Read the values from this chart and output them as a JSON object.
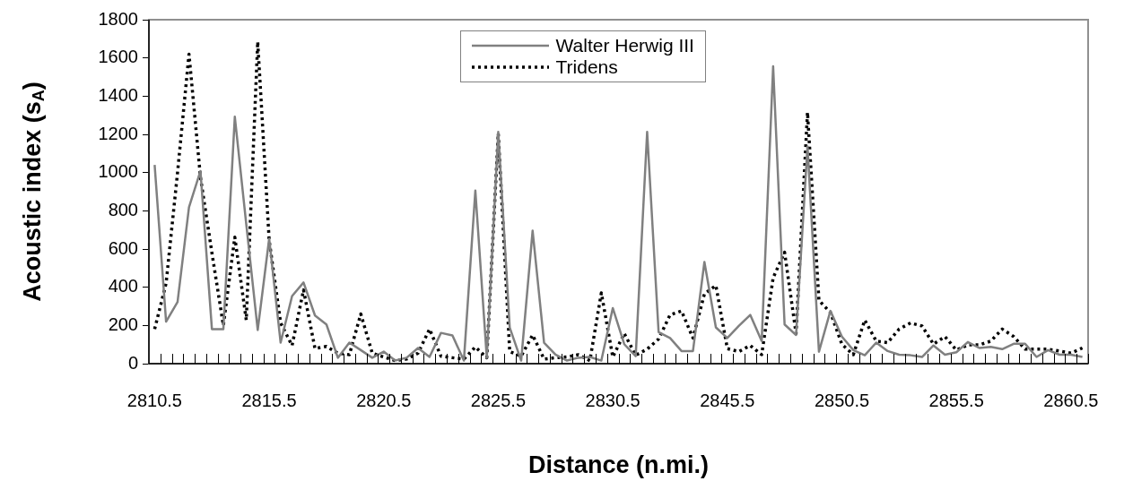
{
  "chart_data": {
    "type": "line",
    "xlabel": "Distance (n.mi.)",
    "ylabel": "Acoustic index (s$_{A}$)",
    "categories": [
      "2810.5",
      null,
      null,
      null,
      null,
      null,
      null,
      null,
      null,
      null,
      "2815.5",
      null,
      null,
      null,
      null,
      null,
      null,
      null,
      null,
      null,
      "2820.5",
      null,
      null,
      null,
      null,
      null,
      null,
      null,
      null,
      null,
      "2825.5",
      null,
      null,
      null,
      null,
      null,
      null,
      null,
      null,
      null,
      "2830.5",
      null,
      null,
      null,
      null,
      null,
      null,
      null,
      null,
      null,
      "2845.5",
      null,
      null,
      null,
      null,
      null,
      null,
      null,
      null,
      null,
      "2850.5",
      null,
      null,
      null,
      null,
      null,
      null,
      null,
      null,
      null,
      "2855.5",
      null,
      null,
      null,
      null,
      null,
      null,
      null,
      null,
      null,
      "2860.5",
      null
    ],
    "ylim": [
      0,
      1800
    ],
    "yticks": [
      0,
      200,
      400,
      600,
      800,
      1000,
      1200,
      1400,
      1600,
      1800
    ],
    "grid": false,
    "legend": "top",
    "marker": "none",
    "series": [
      {
        "name": "Walter Herwig III",
        "color": "#808080",
        "line_style": "solid",
        "values": [
          1040,
          220,
          323,
          819,
          1008,
          181,
          181,
          1292,
          730,
          176,
          654,
          110,
          354,
          425,
          252,
          205,
          31,
          110,
          71,
          31,
          63,
          16,
          31,
          82,
          35,
          161,
          148,
          16,
          906,
          31,
          1213,
          189,
          16,
          696,
          110,
          47,
          16,
          31,
          35,
          16,
          291,
          102,
          39,
          1213,
          165,
          134,
          66,
          66,
          532,
          190,
          134,
          197,
          255,
          118,
          1556,
          205,
          150,
          1137,
          63,
          276,
          142,
          71,
          44,
          110,
          66,
          47,
          44,
          35,
          95,
          47,
          60,
          113,
          82,
          88,
          76,
          104,
          104,
          35,
          71,
          47,
          47,
          35
        ]
      },
      {
        "name": "Tridens",
        "color": "#000000",
        "line_style": "dotted",
        "values": [
          181,
          420,
          1000,
          1620,
          976,
          580,
          200,
          662,
          228,
          1685,
          646,
          213,
          95,
          386,
          79,
          90,
          55,
          47,
          260,
          55,
          35,
          16,
          24,
          55,
          181,
          39,
          31,
          24,
          87,
          31,
          1205,
          63,
          39,
          150,
          24,
          31,
          35,
          47,
          16,
          370,
          35,
          158,
          44,
          76,
          129,
          255,
          276,
          134,
          365,
          409,
          79,
          63,
          95,
          47,
          449,
          583,
          158,
          1315,
          331,
          268,
          102,
          47,
          228,
          118,
          110,
          181,
          213,
          197,
          102,
          142,
          71,
          98,
          98,
          118,
          181,
          142,
          76,
          76,
          76,
          66,
          55,
          82
        ]
      }
    ]
  }
}
